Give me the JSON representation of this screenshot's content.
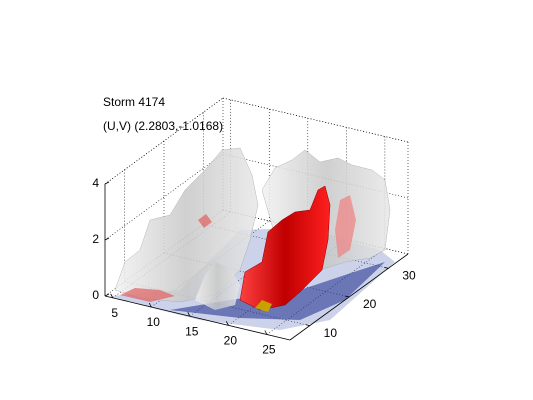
{
  "chart_data": {
    "type": "isosurface3d",
    "title": "Storm 4174",
    "subtitle": "(U,V) (2.2803,-1.0168)",
    "xlim": [
      4,
      28
    ],
    "xticks": [
      5,
      10,
      15,
      20,
      25
    ],
    "ylim": [
      5,
      35
    ],
    "yticks": [
      10,
      20,
      30
    ],
    "zlim": [
      0,
      4
    ],
    "zticks": [
      0,
      2,
      4
    ],
    "grid": true
  }
}
